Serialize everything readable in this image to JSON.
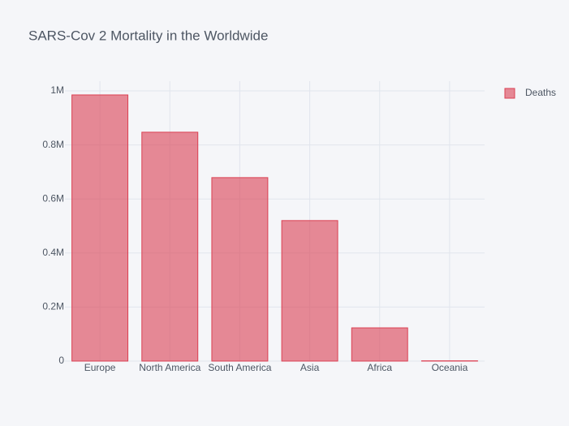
{
  "chart_data": {
    "type": "bar",
    "title": "SARS-Cov 2 Mortality in the Worldwide",
    "categories": [
      "Europe",
      "North America",
      "South America",
      "Asia",
      "Africa",
      "Oceania"
    ],
    "series": [
      {
        "name": "Deaths",
        "color": "#db4052",
        "values": [
          985000,
          847000,
          679000,
          520000,
          123000,
          1000
        ]
      }
    ],
    "ylim": [
      0,
      1036000
    ],
    "yticks": [
      0,
      {
        "value": 200000,
        "label": "0.2M"
      },
      {
        "value": 400000,
        "label": "0.4M"
      },
      {
        "value": 600000,
        "label": "0.6M"
      },
      {
        "value": 800000,
        "label": "0.8M"
      },
      {
        "value": 1000000,
        "label": "1M"
      }
    ],
    "grid": true,
    "legend": "top-right"
  }
}
